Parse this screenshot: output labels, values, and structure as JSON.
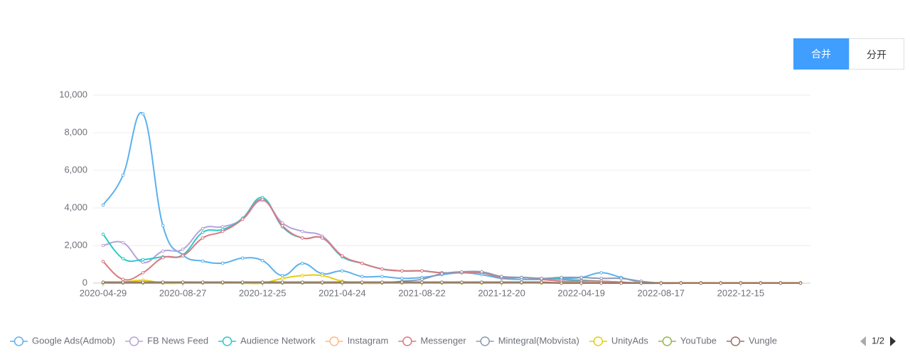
{
  "ui": {
    "buttons": [
      "合并",
      "分开"
    ],
    "legend_page": "1/2"
  },
  "chart_data": {
    "type": "line",
    "smooth": true,
    "grid": true,
    "categories": [
      "2020-04-29",
      null,
      null,
      null,
      "2020-08-27",
      null,
      null,
      null,
      "2020-12-25",
      null,
      null,
      null,
      "2021-04-24",
      null,
      null,
      null,
      "2021-08-22",
      null,
      null,
      null,
      "2021-12-20",
      null,
      null,
      null,
      "2022-04-19",
      null,
      null,
      null,
      "2022-08-17",
      null,
      null,
      null,
      "2022-12-15",
      null,
      null,
      null
    ],
    "ylim": [
      0,
      10000
    ],
    "yticks": [
      0,
      {
        "value": 2000,
        "label": "2,000"
      },
      {
        "value": 4000,
        "label": "4,000"
      },
      {
        "value": 6000,
        "label": "6,000"
      },
      {
        "value": 8000,
        "label": "8,000"
      },
      {
        "value": 10000,
        "label": "10,000"
      }
    ],
    "series": [
      {
        "name": "Google Ads(Admob)",
        "color": "#5ab1ef",
        "values": [
          4150,
          5740,
          9000,
          3060,
          1500,
          1170,
          1060,
          1330,
          1200,
          400,
          1050,
          500,
          650,
          350,
          350,
          250,
          300,
          450,
          550,
          450,
          250,
          200,
          200,
          250,
          300,
          550,
          300,
          50,
          0,
          0,
          0,
          0,
          0,
          0,
          0,
          0
        ]
      },
      {
        "name": "FB News Feed",
        "color": "#b6a2de",
        "values": [
          2000,
          2150,
          1100,
          1700,
          1800,
          2900,
          3000,
          3400,
          4400,
          3200,
          2750,
          2500,
          1450,
          1050,
          750,
          650,
          650,
          550,
          550,
          550,
          350,
          300,
          250,
          200,
          150,
          100,
          50,
          0,
          0,
          0,
          0,
          0,
          0,
          0,
          0,
          0
        ]
      },
      {
        "name": "Audience Network",
        "color": "#2ec7c9",
        "values": [
          2600,
          1300,
          1250,
          1400,
          1500,
          2700,
          2850,
          3450,
          4550,
          3000,
          2400,
          2400,
          1400,
          1050,
          750,
          650,
          650,
          550,
          550,
          550,
          300,
          300,
          250,
          200,
          150,
          100,
          50,
          0,
          0,
          0,
          0,
          0,
          0,
          0,
          0,
          0
        ]
      },
      {
        "name": "Instagram",
        "color": "#ffb980",
        "values": [
          30,
          30,
          30,
          30,
          30,
          30,
          30,
          30,
          30,
          30,
          30,
          30,
          30,
          30,
          30,
          30,
          30,
          30,
          30,
          30,
          30,
          30,
          30,
          30,
          30,
          30,
          30,
          30,
          30,
          30,
          30,
          30,
          30,
          30,
          30,
          30
        ]
      },
      {
        "name": "Messenger",
        "color": "#d87a80",
        "values": [
          1150,
          200,
          550,
          1350,
          1450,
          2400,
          2750,
          3400,
          4450,
          3050,
          2400,
          2400,
          1450,
          1050,
          750,
          650,
          650,
          550,
          550,
          550,
          300,
          300,
          200,
          100,
          100,
          100,
          50,
          0,
          0,
          0,
          0,
          0,
          0,
          0,
          0,
          0
        ]
      },
      {
        "name": "Mintegral(Mobvista)",
        "color": "#8d98b3",
        "values": [
          0,
          0,
          0,
          0,
          0,
          0,
          0,
          0,
          0,
          0,
          0,
          0,
          0,
          0,
          0,
          100,
          200,
          500,
          600,
          600,
          350,
          300,
          250,
          300,
          300,
          250,
          250,
          100,
          0,
          0,
          0,
          0,
          0,
          0,
          0,
          0
        ]
      },
      {
        "name": "UnityAds",
        "color": "#e5cf0d",
        "values": [
          0,
          50,
          150,
          0,
          0,
          0,
          0,
          0,
          0,
          250,
          400,
          400,
          100,
          0,
          0,
          0,
          0,
          0,
          0,
          0,
          0,
          0,
          0,
          0,
          0,
          0,
          0,
          0,
          0,
          0,
          0,
          0,
          0,
          0,
          0,
          0
        ]
      },
      {
        "name": "YouTube",
        "color": "#97b552",
        "values": [
          10,
          10,
          10,
          10,
          10,
          10,
          10,
          10,
          10,
          10,
          10,
          10,
          10,
          10,
          10,
          10,
          10,
          10,
          10,
          10,
          10,
          10,
          10,
          10,
          10,
          10,
          10,
          10,
          10,
          10,
          10,
          10,
          10,
          10,
          10,
          10
        ]
      },
      {
        "name": "Vungle",
        "color": "#95706d",
        "values": [
          50,
          50,
          50,
          50,
          50,
          50,
          50,
          50,
          50,
          50,
          50,
          50,
          50,
          50,
          50,
          50,
          50,
          50,
          50,
          50,
          50,
          50,
          50,
          0,
          0,
          0,
          0,
          0,
          0,
          0,
          0,
          0,
          0,
          0,
          0,
          0
        ]
      }
    ]
  }
}
